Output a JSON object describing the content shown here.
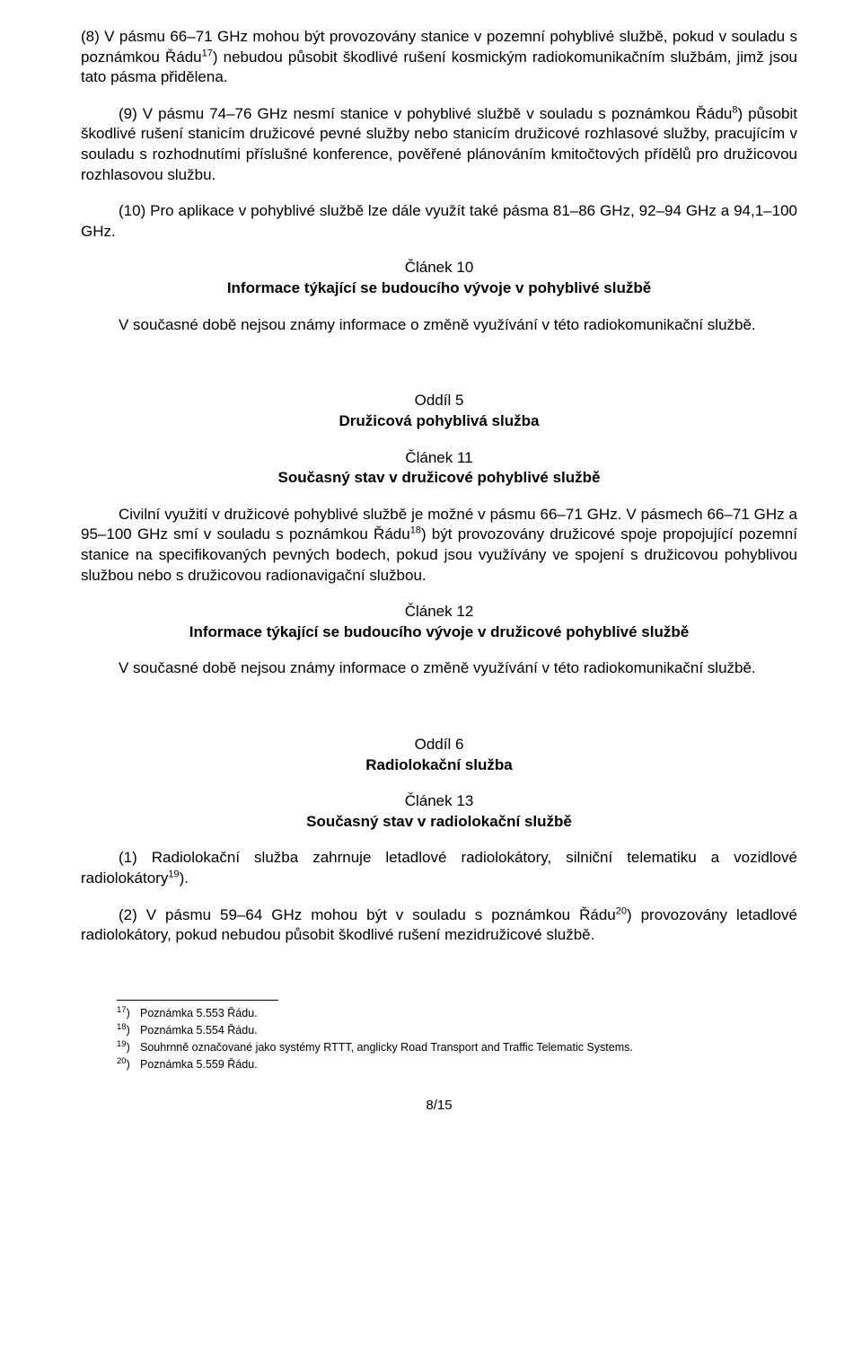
{
  "p8": {
    "pre": "(8) V pásmu 66–71 GHz mohou být provozovány stanice v pozemní pohyblivé službě, pokud v souladu s poznámkou Řádu",
    "sup": "17",
    "post": ") nebudou působit škodlivé rušení kosmickým radiokomunikačním službám, jimž jsou tato pásma přidělena."
  },
  "p9": {
    "pre": "(9) V pásmu 74–76 GHz nesmí stanice v pohyblivé službě v souladu s poznámkou Řádu",
    "sup": "8",
    "post": ") působit škodlivé rušení stanicím družicové pevné služby nebo stanicím družicové rozhlasové služby, pracujícím v souladu s rozhodnutími příslušné konference, pověřené plánováním kmitočtových přídělů pro družicovou rozhlasovou službu."
  },
  "p10": "(10) Pro aplikace v pohyblivé službě lze dále využít také pásma 81–86 GHz, 92–94 GHz a 94,1–100 GHz.",
  "art10": {
    "title": "Článek 10",
    "sub": "Informace týkající se budoucího vývoje v pohyblivé službě"
  },
  "art10body": "V současné době nejsou známy informace o změně využívání v této radiokomunikační službě.",
  "oddil5": {
    "title": "Oddíl 5",
    "sub": "Družicová pohyblivá služba"
  },
  "art11": {
    "title": "Článek 11",
    "sub": "Současný stav v družicové pohyblivé službě"
  },
  "art11body": {
    "pre": "Civilní využití v družicové pohyblivé službě je možné v pásmu 66–71 GHz. V pásmech 66–71 GHz a 95–100 GHz smí v souladu s poznámkou Řádu",
    "sup": "18",
    "post": ") být provozovány družicové spoje propojující pozemní stanice na specifikovaných pevných bodech, pokud jsou využívány ve spojení s družicovou pohyblivou službou nebo s družicovou radionavigační službou."
  },
  "art12": {
    "title": "Článek 12",
    "sub": "Informace týkající se budoucího vývoje v družicové pohyblivé službě"
  },
  "art12body": "V současné době nejsou známy informace o změně využívání v této radiokomunikační službě.",
  "oddil6": {
    "title": "Oddíl 6",
    "sub": "Radiolokační služba"
  },
  "art13": {
    "title": "Článek 13",
    "sub": "Současný stav v radiolokační službě"
  },
  "art13p1": {
    "pre": "(1) Radiolokační služba zahrnuje letadlové radiolokátory, silniční telematiku a vozidlové radiolokátory",
    "sup": "19",
    "post": ")."
  },
  "art13p2": {
    "pre": "(2) V pásmu 59–64 GHz mohou být v souladu s poznámkou Řádu",
    "sup": "20",
    "post": ") provozovány letadlové radiolokátory, pokud nebudou působit škodlivé rušení mezidružicové službě."
  },
  "footnotes": [
    {
      "n": "17",
      "t": "Poznámka 5.553 Řádu."
    },
    {
      "n": "18",
      "t": "Poznámka 5.554 Řádu."
    },
    {
      "n": "19",
      "t": "Souhrnně označované jako systémy RTTT, anglicky Road Transport and Traffic Telematic Systems."
    },
    {
      "n": "20",
      "t": "Poznámka 5.559 Řádu."
    }
  ],
  "pagenum": "8/15"
}
